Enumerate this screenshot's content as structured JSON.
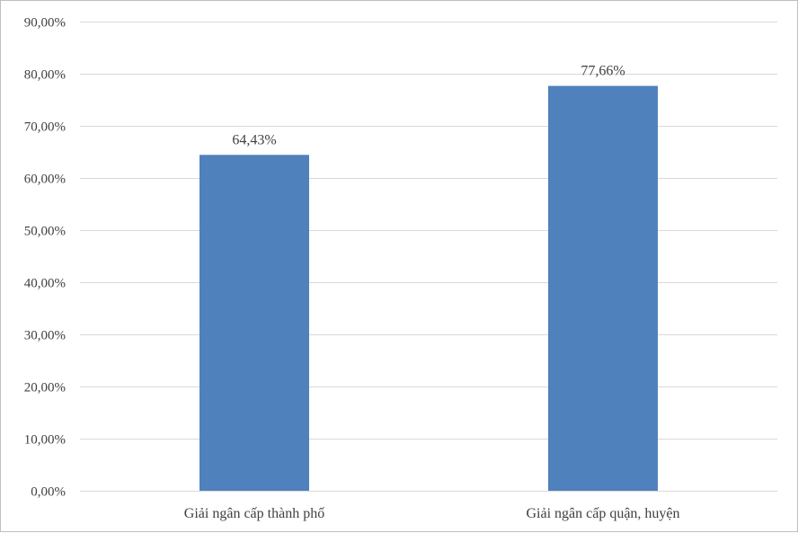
{
  "chart_data": {
    "type": "bar",
    "categories": [
      "Giải ngân cấp thành phố",
      "Giải ngân cấp quận, huyện"
    ],
    "values": [
      64.43,
      77.66
    ],
    "data_labels": [
      "64,43%",
      "77,66%"
    ],
    "ylim": [
      0,
      90
    ],
    "yticks": [
      0,
      10,
      20,
      30,
      40,
      50,
      60,
      70,
      80,
      90
    ],
    "ytick_labels": [
      "0,00%",
      "10,00%",
      "20,00%",
      "30,00%",
      "40,00%",
      "50,00%",
      "60,00%",
      "70,00%",
      "80,00%",
      "90,00%"
    ],
    "grid": true,
    "legend": false,
    "title": "",
    "xlabel": "",
    "ylabel": "",
    "bar_color": "#4f81bd",
    "grid_color": "#d9d9d9",
    "text_color": "#404040"
  }
}
